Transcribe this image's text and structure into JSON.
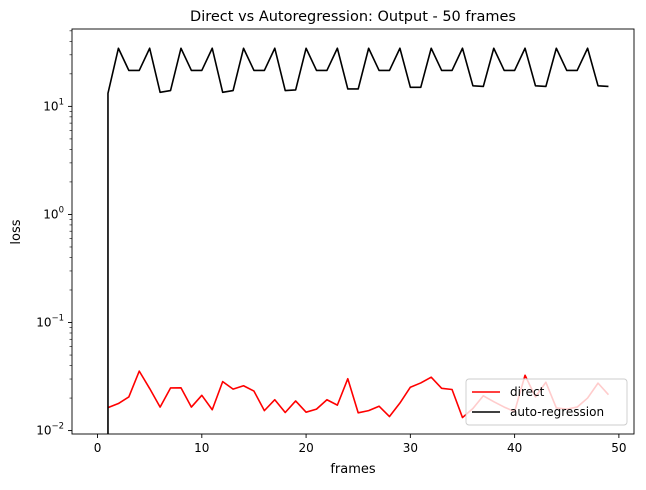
{
  "chart_data": {
    "type": "line",
    "title": "Direct vs Autoregression: Output - 50 frames",
    "xlabel": "frames",
    "ylabel": "loss",
    "yscale": "log",
    "xlim": [
      -2.45,
      51.45
    ],
    "ylim": [
      0.0093,
      52
    ],
    "x_ticks": [
      0,
      10,
      20,
      30,
      40,
      50
    ],
    "y_ticks": [
      {
        "value": 0.01,
        "base": "10",
        "exp": "−2"
      },
      {
        "value": 0.1,
        "base": "10",
        "exp": "−1"
      },
      {
        "value": 1,
        "base": "10",
        "exp": "0"
      },
      {
        "value": 10,
        "base": "10",
        "exp": "1"
      }
    ],
    "legend_position": "lower-right",
    "grid": false,
    "x": [
      1,
      2,
      3,
      4,
      5,
      6,
      7,
      8,
      9,
      10,
      11,
      12,
      13,
      14,
      15,
      16,
      17,
      18,
      19,
      20,
      21,
      22,
      23,
      24,
      25,
      26,
      27,
      28,
      29,
      30,
      31,
      32,
      33,
      34,
      35,
      36,
      37,
      38,
      39,
      40,
      41,
      42,
      43,
      44,
      45,
      46,
      47,
      48,
      49
    ],
    "series": [
      {
        "name": "direct",
        "color": "#ff0000",
        "values": [
          0.0163,
          0.0178,
          0.0205,
          0.0355,
          0.0245,
          0.0165,
          0.0248,
          0.0249,
          0.0165,
          0.0212,
          0.0156,
          0.0284,
          0.0242,
          0.026,
          0.0232,
          0.0153,
          0.0193,
          0.0147,
          0.0188,
          0.0148,
          0.0158,
          0.0193,
          0.0172,
          0.0302,
          0.0146,
          0.0153,
          0.0168,
          0.0135,
          0.018,
          0.0252,
          0.0276,
          0.0312,
          0.0246,
          0.024,
          0.0132,
          0.016,
          0.021,
          0.0185,
          0.0165,
          0.015,
          0.0325,
          0.0205,
          0.028,
          0.0162,
          0.0158,
          0.0165,
          0.02,
          0.0275,
          0.0215
        ]
      },
      {
        "name": "auto-regression",
        "color": "#000000",
        "values": [
          13.2,
          34.5,
          21.5,
          21.5,
          34.5,
          13.5,
          14.0,
          34.5,
          21.5,
          21.5,
          34.5,
          13.5,
          14.0,
          34.5,
          21.5,
          21.5,
          34.5,
          14.0,
          14.2,
          34.5,
          21.5,
          21.5,
          34.5,
          14.5,
          14.5,
          34.5,
          21.5,
          21.5,
          34.5,
          15.0,
          15.0,
          34.5,
          21.5,
          21.5,
          34.5,
          15.5,
          15.3,
          34.5,
          21.5,
          21.5,
          34.5,
          15.5,
          15.3,
          34.5,
          21.5,
          21.5,
          34.5,
          15.5,
          15.3
        ],
        "drop_to_axis_at_x": 1
      }
    ]
  }
}
